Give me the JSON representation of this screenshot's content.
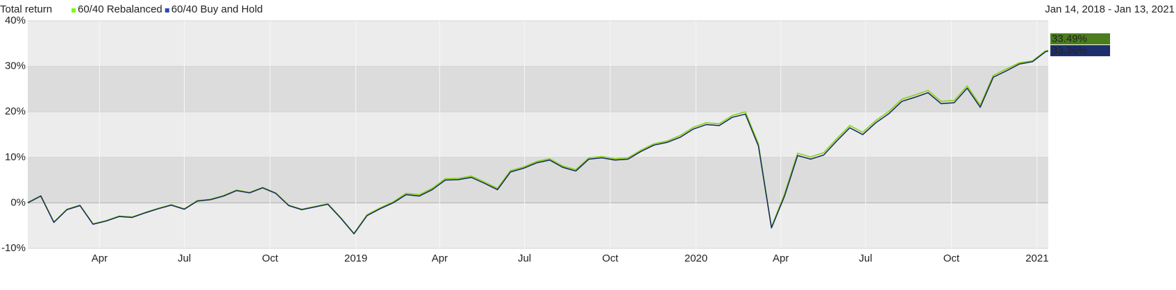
{
  "chart_data": {
    "type": "line",
    "title": "Total return",
    "subtitle": "Jan 14, 2018 - Jan 13, 2021",
    "x": [
      "2018-01-14",
      "2018-01-28",
      "2018-02-11",
      "2018-02-25",
      "2018-03-11",
      "2018-03-25",
      "2018-04-08",
      "2018-04-22",
      "2018-05-06",
      "2018-05-20",
      "2018-06-03",
      "2018-06-17",
      "2018-07-01",
      "2018-07-15",
      "2018-07-29",
      "2018-08-12",
      "2018-08-26",
      "2018-09-09",
      "2018-09-23",
      "2018-10-07",
      "2018-10-21",
      "2018-11-04",
      "2018-11-18",
      "2018-12-02",
      "2018-12-16",
      "2018-12-30",
      "2019-01-13",
      "2019-01-27",
      "2019-02-10",
      "2019-02-24",
      "2019-03-10",
      "2019-03-24",
      "2019-04-07",
      "2019-04-21",
      "2019-05-05",
      "2019-05-19",
      "2019-06-02",
      "2019-06-16",
      "2019-06-30",
      "2019-07-14",
      "2019-07-28",
      "2019-08-11",
      "2019-08-25",
      "2019-09-08",
      "2019-09-22",
      "2019-10-06",
      "2019-10-20",
      "2019-11-03",
      "2019-11-17",
      "2019-12-01",
      "2019-12-15",
      "2019-12-29",
      "2020-01-12",
      "2020-01-26",
      "2020-02-09",
      "2020-02-23",
      "2020-03-08",
      "2020-03-22",
      "2020-04-05",
      "2020-04-19",
      "2020-05-03",
      "2020-05-17",
      "2020-05-31",
      "2020-06-14",
      "2020-06-28",
      "2020-07-12",
      "2020-07-26",
      "2020-08-09",
      "2020-08-23",
      "2020-09-06",
      "2020-09-20",
      "2020-10-04",
      "2020-10-18",
      "2020-11-01",
      "2020-11-15",
      "2020-11-29",
      "2020-12-13",
      "2020-12-27",
      "2021-01-10",
      "2021-01-13"
    ],
    "series": [
      {
        "name": "60/40 Rebalanced",
        "color": "#84d414",
        "legend_color": "#7cfc00",
        "label_color": "#4b7d1c",
        "end_label": "33.49%",
        "values": [
          0.1,
          1.6,
          -4.2,
          -1.4,
          -0.5,
          -4.6,
          -3.9,
          -2.9,
          -3.1,
          -2.1,
          -1.2,
          -0.4,
          -1.3,
          0.5,
          0.8,
          1.6,
          2.8,
          2.3,
          3.4,
          2.2,
          -0.5,
          -1.4,
          -0.8,
          -0.2,
          -3.3,
          -6.7,
          -2.6,
          -1.1,
          0.2,
          2.1,
          1.8,
          3.2,
          5.3,
          5.4,
          5.9,
          4.6,
          3.2,
          7.1,
          7.9,
          9.1,
          9.7,
          8.1,
          7.3,
          9.9,
          10.2,
          9.7,
          9.9,
          11.6,
          13.0,
          13.6,
          14.8,
          16.6,
          17.6,
          17.4,
          19.2,
          20.0,
          13.0,
          -5.3,
          2.0,
          10.9,
          10.1,
          11.0,
          14.1,
          17.0,
          15.5,
          18.1,
          20.1,
          22.8,
          23.7,
          24.7,
          22.3,
          22.5,
          25.7,
          21.5,
          28.0,
          29.4,
          30.8,
          31.2,
          33.4,
          33.49
        ]
      },
      {
        "name": "60/40 Buy and Hold",
        "color": "#1c2f5e",
        "legend_color": "#2a48c0",
        "label_color": "#1c2f6b",
        "end_label": "33.36%",
        "values": [
          0,
          1.5,
          -4.3,
          -1.5,
          -0.6,
          -4.7,
          -4.0,
          -3.0,
          -3.2,
          -2.2,
          -1.3,
          -0.5,
          -1.4,
          0.4,
          0.7,
          1.5,
          2.7,
          2.2,
          3.3,
          2.1,
          -0.6,
          -1.5,
          -0.9,
          -0.3,
          -3.4,
          -6.8,
          -2.8,
          -1.3,
          0.0,
          1.8,
          1.5,
          2.9,
          5.0,
          5.1,
          5.6,
          4.3,
          2.9,
          6.8,
          7.6,
          8.8,
          9.4,
          7.8,
          7.0,
          9.6,
          9.9,
          9.4,
          9.6,
          11.3,
          12.7,
          13.3,
          14.4,
          16.2,
          17.2,
          17.0,
          18.8,
          19.5,
          12.5,
          -5.5,
          1.5,
          10.4,
          9.6,
          10.5,
          13.6,
          16.5,
          15.0,
          17.6,
          19.6,
          22.3,
          23.2,
          24.2,
          21.8,
          22.0,
          25.2,
          21.0,
          27.6,
          29.0,
          30.5,
          31.0,
          33.2,
          33.36
        ]
      }
    ],
    "xlim": [
      "2018-01-14",
      "2021-01-13"
    ],
    "xticks": [
      {
        "value": "2018-04-01",
        "label": "Apr"
      },
      {
        "value": "2018-07-01",
        "label": "Jul"
      },
      {
        "value": "2018-10-01",
        "label": "Oct"
      },
      {
        "value": "2019-01-01",
        "label": "2019"
      },
      {
        "value": "2019-04-01",
        "label": "Apr"
      },
      {
        "value": "2019-07-01",
        "label": "Jul"
      },
      {
        "value": "2019-10-01",
        "label": "Oct"
      },
      {
        "value": "2020-01-01",
        "label": "2020"
      },
      {
        "value": "2020-04-01",
        "label": "Apr"
      },
      {
        "value": "2020-07-01",
        "label": "Jul"
      },
      {
        "value": "2020-10-01",
        "label": "Oct"
      },
      {
        "value": "2021-01-01",
        "label": "2021"
      }
    ],
    "ylim": [
      -10,
      40
    ],
    "yticks": [
      {
        "value": -10,
        "label": "-10%"
      },
      {
        "value": 0,
        "label": "0%"
      },
      {
        "value": 10,
        "label": "10%"
      },
      {
        "value": 20,
        "label": "20%"
      },
      {
        "value": 30,
        "label": "30%"
      },
      {
        "value": 40,
        "label": "40%"
      }
    ],
    "grid": true
  }
}
